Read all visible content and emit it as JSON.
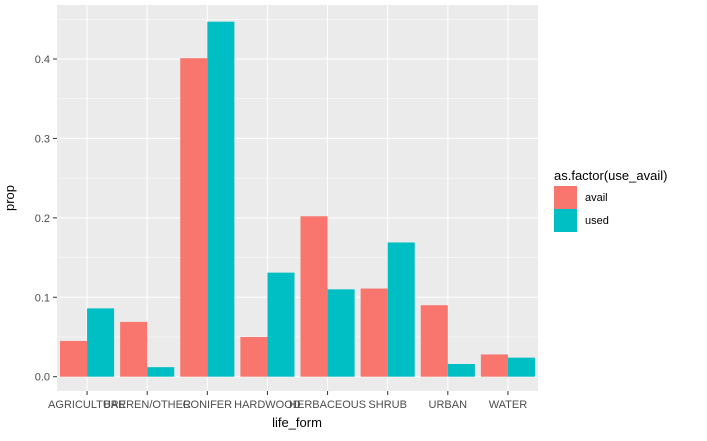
{
  "colors": {
    "panel_background": "#EBEBEB",
    "grid_major": "#FFFFFF",
    "avail": "#F8766D",
    "used": "#00BFC4",
    "tick_text": "#4D4D4D"
  },
  "chart_data": {
    "type": "bar",
    "grouped": true,
    "xlabel": "life_form",
    "ylabel": "prop",
    "ylim": [
      -0.018,
      0.468
    ],
    "yticks": [
      0.0,
      0.1,
      0.2,
      0.3,
      0.4
    ],
    "ytick_labels": [
      "0.0",
      "0.1",
      "0.2",
      "0.3",
      "0.4"
    ],
    "grid": true,
    "legend_position": "right",
    "legend_title": "as.factor(use_avail)",
    "categories": [
      "AGRICULTURE",
      "BARREN/OTHER",
      "CONIFER",
      "HARDWOOD",
      "HERBACEOUS",
      "SHRUB",
      "URBAN",
      "WATER"
    ],
    "series": [
      {
        "name": "avail",
        "color": "#F8766D",
        "values": [
          0.045,
          0.069,
          0.401,
          0.05,
          0.202,
          0.111,
          0.09,
          0.028
        ]
      },
      {
        "name": "used",
        "color": "#00BFC4",
        "values": [
          0.086,
          0.012,
          0.447,
          0.131,
          0.11,
          0.169,
          0.016,
          0.024
        ]
      }
    ]
  }
}
